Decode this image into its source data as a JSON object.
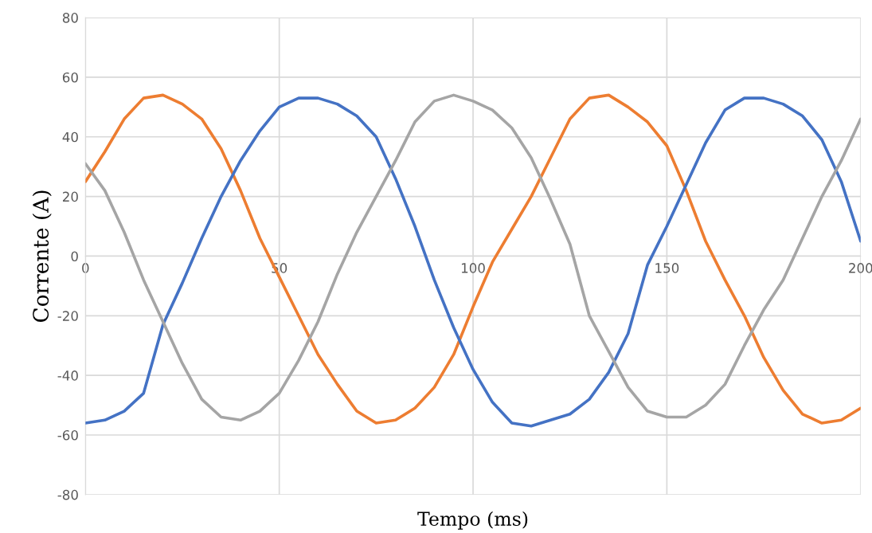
{
  "chart_data": {
    "type": "line",
    "xlabel": "Tempo (ms)",
    "ylabel": "Corrente (A)",
    "x": [
      0,
      5,
      10,
      15,
      20,
      25,
      30,
      35,
      40,
      45,
      50,
      55,
      60,
      65,
      70,
      75,
      80,
      85,
      90,
      95,
      100,
      105,
      110,
      115,
      120,
      125,
      130,
      135,
      140,
      145,
      150,
      155,
      160,
      165,
      170,
      175,
      180,
      185,
      190,
      195,
      200
    ],
    "series": [
      {
        "color": "#ed7d31",
        "values": [
          25,
          35,
          46,
          53,
          54,
          51,
          46,
          36,
          22,
          6,
          -7,
          -20,
          -33,
          -43,
          -52,
          -56,
          -55,
          -51,
          -44,
          -33,
          -17,
          -2,
          9,
          20,
          33,
          46,
          53,
          54,
          50,
          45,
          37,
          22,
          5,
          -8,
          -20,
          -34,
          -45,
          -53,
          -56,
          -55,
          -51
        ]
      },
      {
        "color": "#4472c4",
        "values": [
          -56,
          -55,
          -52,
          -46,
          -23,
          -9,
          6,
          20,
          32,
          42,
          50,
          53,
          53,
          51,
          47,
          40,
          26,
          10,
          -8,
          -24,
          -38,
          -49,
          -56,
          -57,
          -55,
          -53,
          -48,
          -39,
          -26,
          -3,
          10,
          24,
          38,
          49,
          53,
          53,
          51,
          47,
          39,
          25,
          5
        ]
      },
      {
        "color": "#a5a5a5",
        "values": [
          31,
          22,
          8,
          -8,
          -22,
          -36,
          -48,
          -54,
          -55,
          -52,
          -46,
          -35,
          -22,
          -6,
          8,
          20,
          32,
          45,
          52,
          54,
          52,
          49,
          43,
          33,
          19,
          4,
          -20,
          -32,
          -44,
          -52,
          -54,
          -54,
          -50,
          -43,
          -30,
          -18,
          -8,
          6,
          20,
          32,
          46
        ]
      }
    ],
    "xlim": [
      0,
      200
    ],
    "xticks": [
      0,
      50,
      100,
      150,
      200
    ],
    "ylim": [
      -80,
      80
    ],
    "yticks": [
      -80,
      -60,
      -40,
      -20,
      0,
      20,
      40,
      60,
      80
    ],
    "grid": true,
    "marker": "none",
    "line_style": "solid"
  }
}
